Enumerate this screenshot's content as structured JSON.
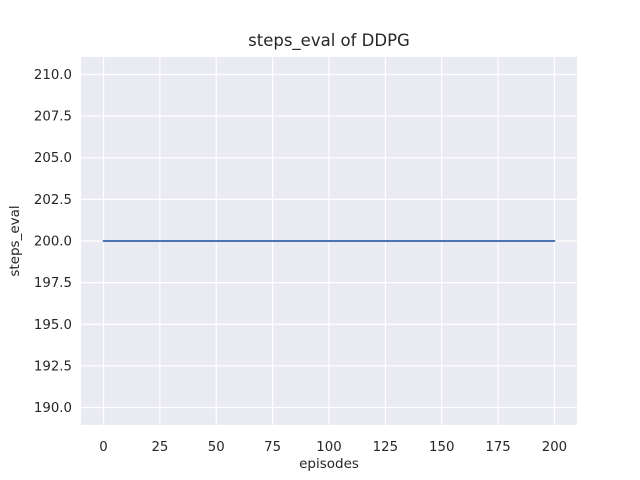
{
  "figure": {
    "background_color": "#ffffff",
    "axes_background_color": "#eaeaf2",
    "grid_color": "#ffffff",
    "text_color": "#262626"
  },
  "chart_data": {
    "type": "line",
    "title": "steps_eval of DDPG",
    "xlabel": "episodes",
    "ylabel": "steps_eval",
    "xlim": [
      -10,
      210
    ],
    "ylim": [
      188.95,
      211.05
    ],
    "x_ticks": [
      0,
      25,
      50,
      75,
      100,
      125,
      150,
      175,
      200
    ],
    "x_tick_labels": [
      "0",
      "25",
      "50",
      "75",
      "100",
      "125",
      "150",
      "175",
      "200"
    ],
    "y_ticks": [
      190.0,
      192.5,
      195.0,
      197.5,
      200.0,
      202.5,
      205.0,
      207.5,
      210.0
    ],
    "y_tick_labels": [
      "190.0",
      "192.5",
      "195.0",
      "197.5",
      "200.0",
      "202.5",
      "205.0",
      "207.5",
      "210.0"
    ],
    "grid": true,
    "legend": false,
    "series": [
      {
        "name": "steps_eval",
        "color": "#4c72b0",
        "line_width": 1.9,
        "x": [
          0,
          200
        ],
        "y": [
          200,
          200
        ]
      }
    ]
  }
}
